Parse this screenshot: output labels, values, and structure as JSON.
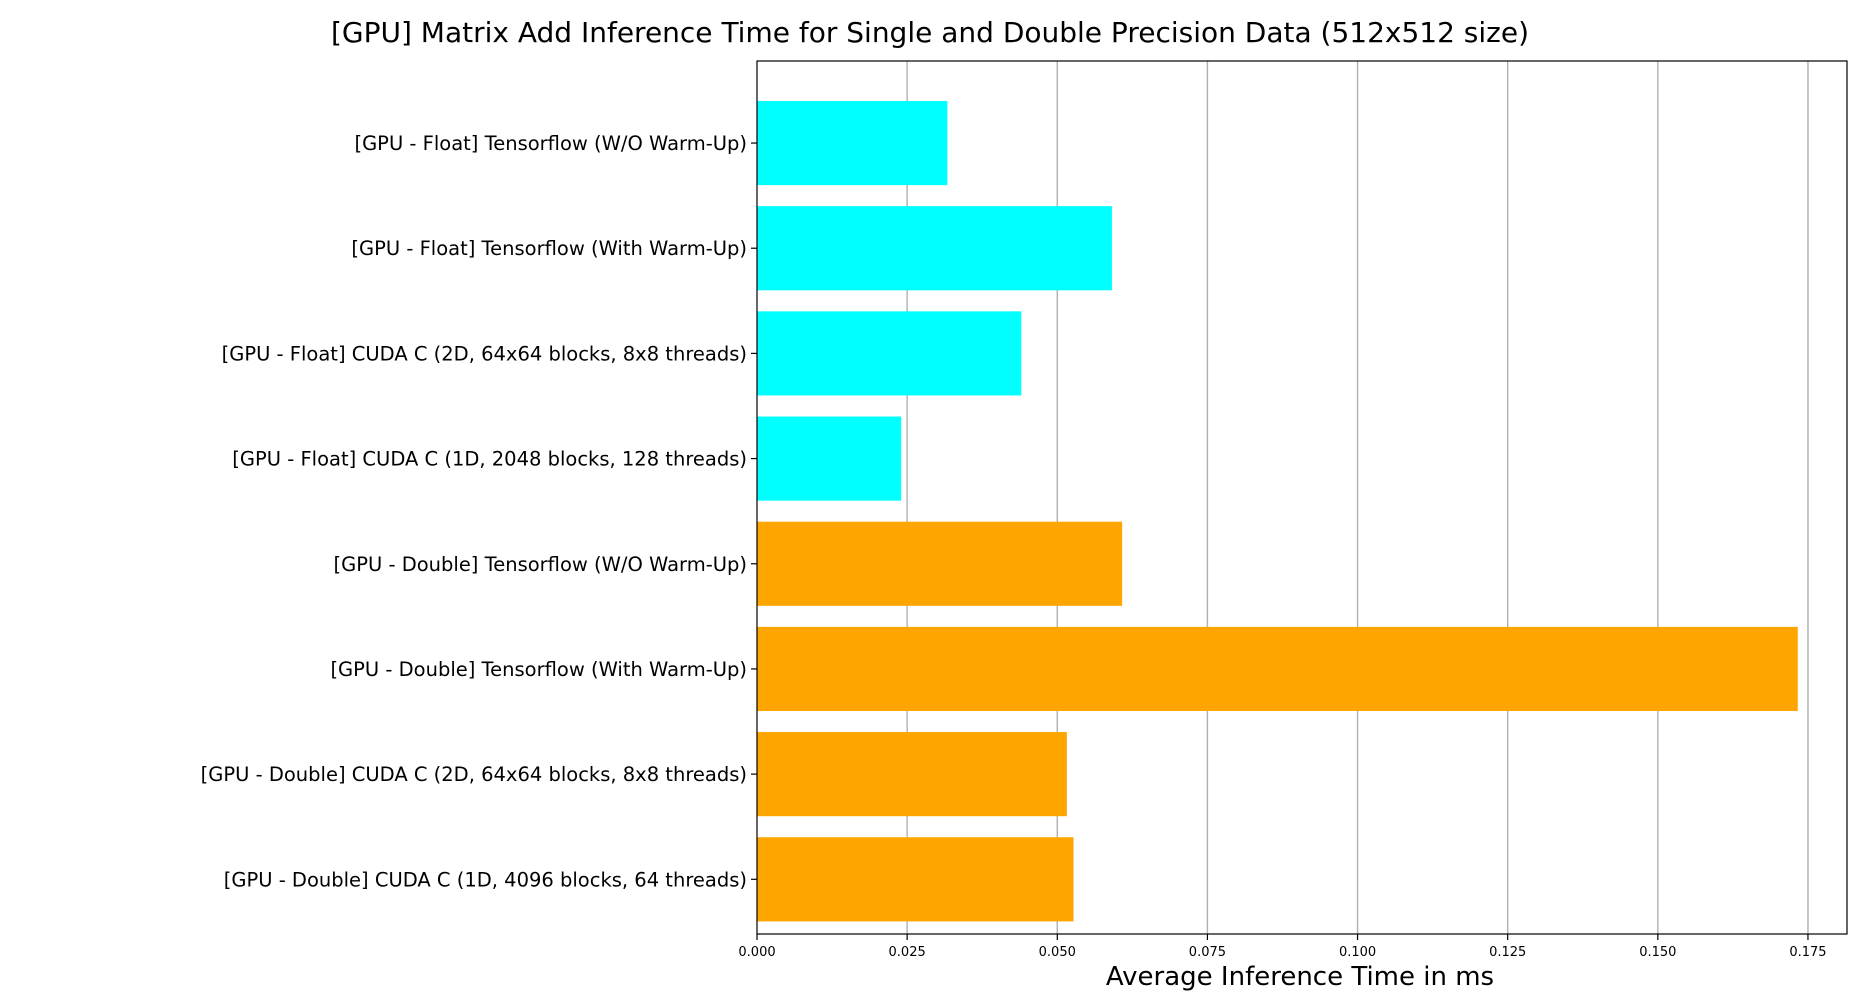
{
  "chart_data": {
    "type": "bar",
    "orientation": "horizontal",
    "title": "[GPU] Matrix Add Inference Time for Single and Double Precision Data (512x512 size)",
    "xlabel": "Average Inference Time in ms",
    "ylabel": "",
    "xlim": [
      0,
      0.1815
    ],
    "xticks": [
      0,
      0.025,
      0.05,
      0.075,
      0.1,
      0.125,
      0.15,
      0.175
    ],
    "xtick_labels": [
      "0.000",
      "0.025",
      "0.050",
      "0.075",
      "0.100",
      "0.125",
      "0.150",
      "0.175"
    ],
    "grid": "x",
    "legend": "none",
    "categories": [
      "[GPU - Float] Tensorflow (W/O Warm-Up)",
      "[GPU - Float] Tensorflow (With Warm-Up)",
      "[GPU - Float] CUDA C (2D, 64x64 blocks, 8x8 threads)",
      "[GPU - Float] CUDA C (1D, 2048 blocks, 128 threads)",
      "[GPU - Double] Tensorflow (W/O Warm-Up)",
      "[GPU - Double] Tensorflow (With Warm-Up)",
      "[GPU - Double] CUDA C (2D, 64x64 blocks, 8x8 threads)",
      "[GPU - Double] CUDA C (1D, 4096 blocks, 64 threads)"
    ],
    "values": [
      0.0317,
      0.0591,
      0.044,
      0.024,
      0.0608,
      0.1733,
      0.0516,
      0.0527
    ],
    "colors": [
      "#00ffff",
      "#00ffff",
      "#00ffff",
      "#00ffff",
      "#ffa500",
      "#ffa500",
      "#ffa500",
      "#ffa500"
    ]
  }
}
